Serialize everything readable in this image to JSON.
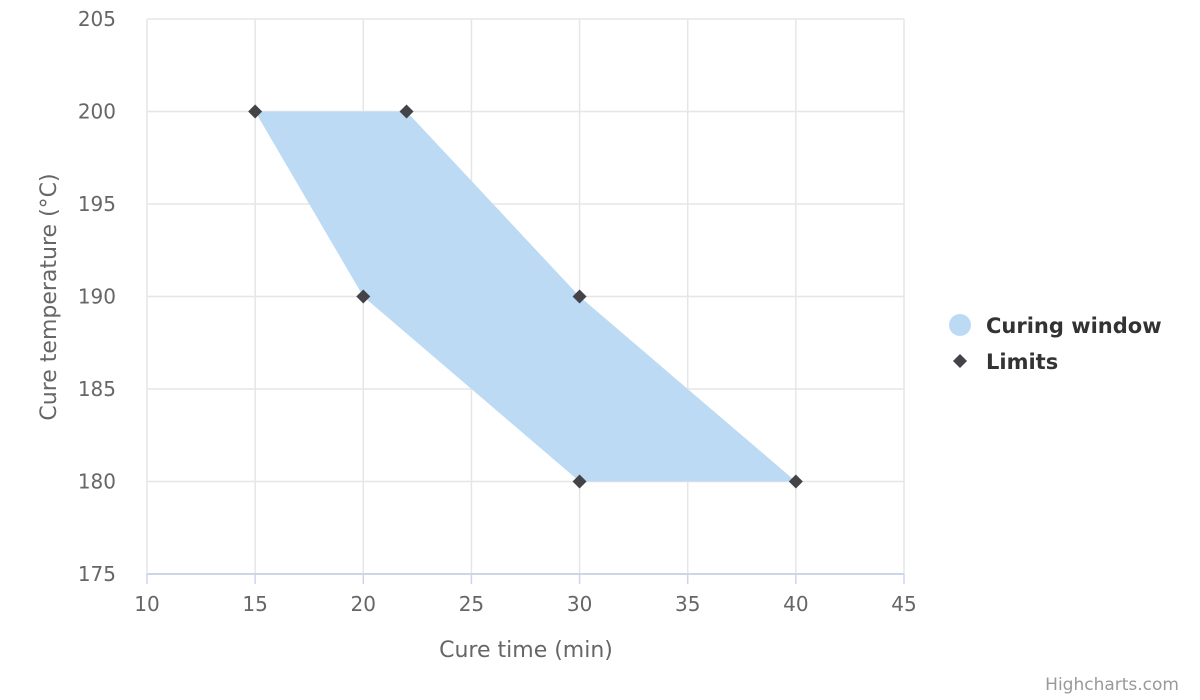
{
  "chart_data": {
    "type": "area",
    "title": "",
    "xlabel": "Cure time (min)",
    "ylabel": "Cure temperature (°C)",
    "xlim": [
      10,
      45
    ],
    "ylim": [
      175,
      205
    ],
    "x_ticks": [
      10,
      15,
      20,
      25,
      30,
      35,
      40,
      45
    ],
    "y_ticks": [
      175,
      180,
      185,
      190,
      195,
      200,
      205
    ],
    "grid": true,
    "legend_position": "right",
    "series": [
      {
        "name": "Curing window",
        "type": "polygon",
        "color": "#bcdaf3",
        "points": [
          [
            15,
            200
          ],
          [
            22,
            200
          ],
          [
            30,
            190
          ],
          [
            40,
            180
          ],
          [
            30,
            180
          ],
          [
            20,
            190
          ]
        ]
      },
      {
        "name": "Limits",
        "type": "scatter",
        "marker": "diamond",
        "color": "#434348",
        "points": [
          [
            15,
            200
          ],
          [
            22,
            200
          ],
          [
            20,
            190
          ],
          [
            30,
            190
          ],
          [
            30,
            180
          ],
          [
            40,
            180
          ]
        ]
      }
    ]
  },
  "credits": "Highcharts.com"
}
